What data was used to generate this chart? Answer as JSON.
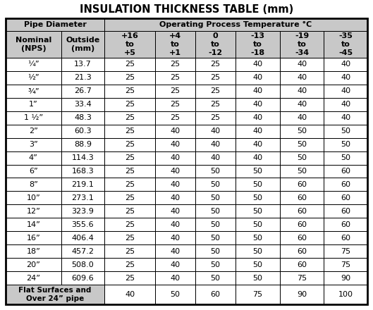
{
  "title": "INSULATION THICKNESS TABLE (mm)",
  "sub_headers": [
    "Nominal\n(NPS)",
    "Outside\n(mm)",
    "+16\nto\n+5",
    "+4\nto\n+1",
    "0\nto\n-12",
    "-13\nto\n-18",
    "-19\nto\n-34",
    "-35\nto\n-45"
  ],
  "rows": [
    [
      "¼”",
      "13.7",
      "25",
      "25",
      "25",
      "40",
      "40",
      "40"
    ],
    [
      "½”",
      "21.3",
      "25",
      "25",
      "25",
      "40",
      "40",
      "40"
    ],
    [
      "¾”",
      "26.7",
      "25",
      "25",
      "25",
      "40",
      "40",
      "40"
    ],
    [
      "1”",
      "33.4",
      "25",
      "25",
      "25",
      "40",
      "40",
      "40"
    ],
    [
      "1 ½”",
      "48.3",
      "25",
      "25",
      "25",
      "40",
      "40",
      "40"
    ],
    [
      "2”",
      "60.3",
      "25",
      "40",
      "40",
      "40",
      "50",
      "50"
    ],
    [
      "3”",
      "88.9",
      "25",
      "40",
      "40",
      "40",
      "50",
      "50"
    ],
    [
      "4”",
      "114.3",
      "25",
      "40",
      "40",
      "40",
      "50",
      "50"
    ],
    [
      "6”",
      "168.3",
      "25",
      "40",
      "50",
      "50",
      "50",
      "60"
    ],
    [
      "8”",
      "219.1",
      "25",
      "40",
      "50",
      "50",
      "60",
      "60"
    ],
    [
      "10”",
      "273.1",
      "25",
      "40",
      "50",
      "50",
      "60",
      "60"
    ],
    [
      "12”",
      "323.9",
      "25",
      "40",
      "50",
      "50",
      "60",
      "60"
    ],
    [
      "14”",
      "355.6",
      "25",
      "40",
      "50",
      "50",
      "60",
      "60"
    ],
    [
      "16”",
      "406.4",
      "25",
      "40",
      "50",
      "50",
      "60",
      "60"
    ],
    [
      "18”",
      "457.2",
      "25",
      "40",
      "50",
      "50",
      "60",
      "75"
    ],
    [
      "20”",
      "508.0",
      "25",
      "40",
      "50",
      "50",
      "60",
      "75"
    ],
    [
      "24”",
      "609.6",
      "25",
      "40",
      "50",
      "50",
      "75",
      "90"
    ]
  ],
  "last_row_label": "Flat Surfaces and\nOver 24” pipe",
  "last_row_vals": [
    "40",
    "50",
    "60",
    "75",
    "90",
    "100"
  ],
  "bg_color": "#ffffff",
  "header_bg": "#c8c8c8",
  "border_color": "#000000",
  "title_fontsize": 10.5,
  "header_fontsize": 8.0,
  "data_fontsize": 8.0
}
